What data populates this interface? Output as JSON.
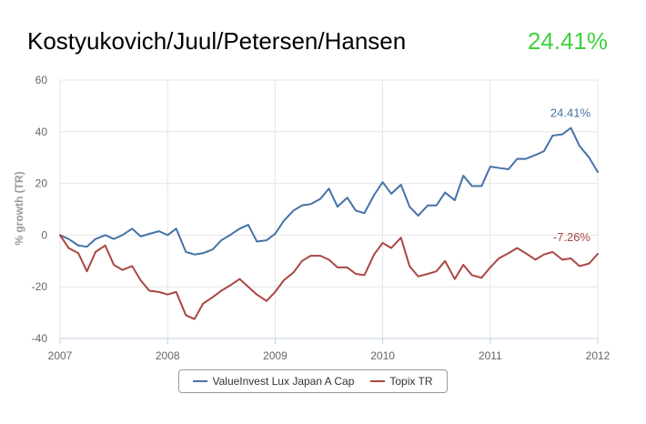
{
  "header": {
    "title": "Kostyukovich/Juul/Petersen/Hansen",
    "value": "24.41%",
    "value_color": "#3fd13f"
  },
  "chart_data": {
    "type": "line",
    "title": "",
    "xlabel": "",
    "ylabel": "% growth (TR)",
    "ylim": [
      -40,
      60
    ],
    "yticks": [
      "-40",
      "-20",
      "0",
      "20",
      "40",
      "60"
    ],
    "xticks": [
      "2007",
      "2008",
      "2009",
      "2010",
      "2011",
      "2012"
    ],
    "xlim": [
      2007,
      2012
    ],
    "grid": true,
    "legend_position": "bottom",
    "series": [
      {
        "name": "ValueInvest Lux Japan A Cap",
        "color": "#4572a7",
        "end_label": "24.41%",
        "x": [
          2007.0,
          2007.08,
          2007.17,
          2007.25,
          2007.33,
          2007.42,
          2007.5,
          2007.58,
          2007.67,
          2007.75,
          2007.83,
          2007.92,
          2008.0,
          2008.08,
          2008.17,
          2008.25,
          2008.33,
          2008.42,
          2008.5,
          2008.58,
          2008.67,
          2008.75,
          2008.83,
          2008.92,
          2009.0,
          2009.08,
          2009.17,
          2009.25,
          2009.33,
          2009.42,
          2009.5,
          2009.58,
          2009.67,
          2009.75,
          2009.83,
          2009.92,
          2010.0,
          2010.08,
          2010.17,
          2010.25,
          2010.33,
          2010.42,
          2010.5,
          2010.58,
          2010.67,
          2010.75,
          2010.83,
          2010.92,
          2011.0,
          2011.08,
          2011.17,
          2011.25,
          2011.33,
          2011.42,
          2011.5,
          2011.58,
          2011.67,
          2011.75,
          2011.83,
          2011.92,
          2012.0
        ],
        "values": [
          0,
          -1.5,
          -4,
          -4.5,
          -1.5,
          0,
          -1.5,
          0,
          2.5,
          -0.5,
          0.5,
          1.5,
          0,
          2.5,
          -6.5,
          -7.5,
          -7,
          -5.5,
          -2,
          0,
          2.5,
          4,
          -2.5,
          -2,
          0.5,
          5.5,
          9.5,
          11.5,
          12,
          14,
          18,
          11,
          14.5,
          9.5,
          8.5,
          15.5,
          20.5,
          16,
          19.5,
          11,
          7.5,
          11.5,
          11.5,
          16.5,
          13.5,
          23,
          19,
          19,
          26.5,
          26,
          25.5,
          29.5,
          29.5,
          31,
          32.5,
          38.5,
          39,
          41.5,
          34.5,
          30,
          24.41
        ]
      },
      {
        "name": "Topix TR",
        "color": "#aa4643",
        "end_label": "-7.26%",
        "x": [
          2007.0,
          2007.08,
          2007.17,
          2007.25,
          2007.33,
          2007.42,
          2007.5,
          2007.58,
          2007.67,
          2007.75,
          2007.83,
          2007.92,
          2008.0,
          2008.08,
          2008.17,
          2008.25,
          2008.33,
          2008.42,
          2008.5,
          2008.58,
          2008.67,
          2008.75,
          2008.83,
          2008.92,
          2009.0,
          2009.08,
          2009.17,
          2009.25,
          2009.33,
          2009.42,
          2009.5,
          2009.58,
          2009.67,
          2009.75,
          2009.83,
          2009.92,
          2010.0,
          2010.08,
          2010.17,
          2010.25,
          2010.33,
          2010.42,
          2010.5,
          2010.58,
          2010.67,
          2010.75,
          2010.83,
          2010.92,
          2011.0,
          2011.08,
          2011.17,
          2011.25,
          2011.33,
          2011.42,
          2011.5,
          2011.58,
          2011.67,
          2011.75,
          2011.83,
          2011.92,
          2012.0
        ],
        "values": [
          0,
          -5,
          -7,
          -14,
          -6.5,
          -4,
          -11.5,
          -13.5,
          -12,
          -17.5,
          -21.5,
          -22,
          -23,
          -22,
          -31,
          -32.5,
          -26.5,
          -24,
          -21.5,
          -19.5,
          -17,
          -20,
          -23,
          -25.5,
          -22,
          -17.5,
          -14.5,
          -10,
          -8,
          -8,
          -9.5,
          -12.5,
          -12.5,
          -15,
          -15.5,
          -7.5,
          -3,
          -5,
          -1,
          -12,
          -16,
          -15,
          -14,
          -10,
          -17,
          -11.5,
          -15.5,
          -16.5,
          -12.5,
          -9,
          -7,
          -5,
          -7,
          -9.5,
          -7.5,
          -6.5,
          -9.5,
          -9,
          -12,
          -11,
          -7.26
        ]
      }
    ]
  }
}
